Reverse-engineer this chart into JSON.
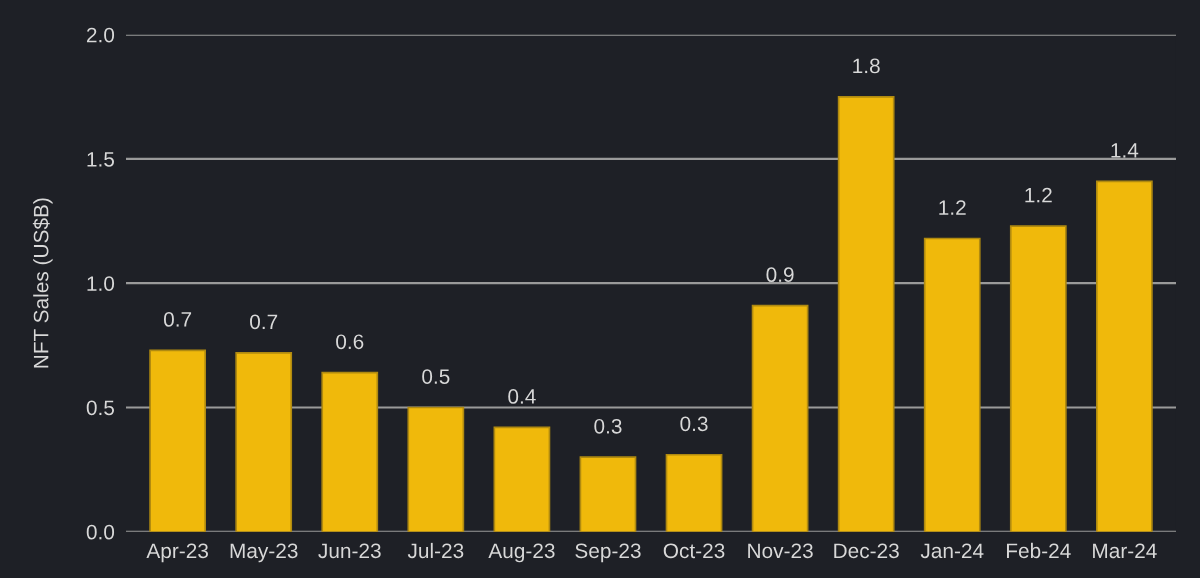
{
  "chart_data": {
    "type": "bar",
    "ylabel": "NFT Sales (US$B)",
    "categories": [
      "Apr-23",
      "May-23",
      "Jun-23",
      "Jul-23",
      "Aug-23",
      "Sep-23",
      "Oct-23",
      "Nov-23",
      "Dec-23",
      "Jan-24",
      "Feb-24",
      "Mar-24"
    ],
    "values": [
      0.73,
      0.72,
      0.64,
      0.5,
      0.42,
      0.3,
      0.31,
      0.91,
      1.75,
      1.18,
      1.23,
      1.41
    ],
    "value_labels": [
      "0.7",
      "0.7",
      "0.6",
      "0.5",
      "0.4",
      "0.3",
      "0.3",
      "0.9",
      "1.8",
      "1.2",
      "1.2",
      "1.4"
    ],
    "color": "#f0b90b",
    "ylim": [
      0,
      2.0
    ],
    "yticks": [
      {
        "value": 0,
        "label": "0.0"
      },
      {
        "value": 0.5,
        "label": "0.5"
      },
      {
        "value": 1.0,
        "label": "1.0"
      },
      {
        "value": 1.5,
        "label": "1.5"
      },
      {
        "value": 2.0,
        "label": "2.0"
      }
    ],
    "grid": "y"
  }
}
